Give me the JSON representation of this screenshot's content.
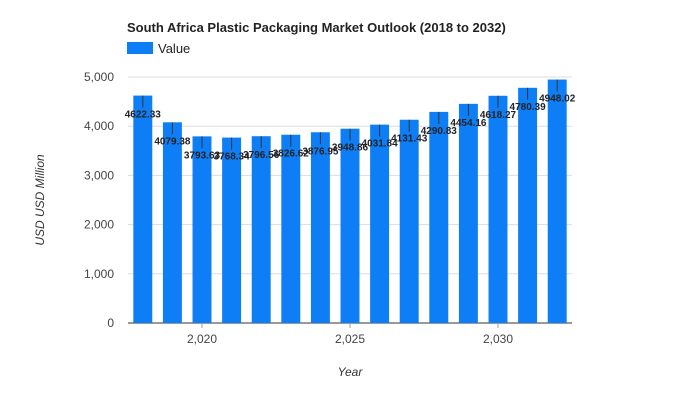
{
  "chart_data": {
    "type": "bar",
    "title": "South Africa Plastic Packaging Market Outlook (2018 to 2032)",
    "xlabel": "Year",
    "ylabel": "USD USD Million",
    "legend": {
      "position": "top-left",
      "entries": [
        "Value"
      ]
    },
    "color": "#0d7ef5",
    "categories": [
      2018,
      2019,
      2020,
      2021,
      2022,
      2023,
      2024,
      2025,
      2026,
      2027,
      2028,
      2029,
      2030,
      2031,
      2032
    ],
    "x_ticks": [
      2020,
      2025,
      2030
    ],
    "x_tick_labels": [
      "2,020",
      "2,025",
      "2,030"
    ],
    "series": [
      {
        "name": "Value",
        "values": [
          4622.33,
          4079.38,
          3793.63,
          3768.34,
          3796.56,
          3826.62,
          3876.95,
          3948.86,
          4031.84,
          4131.43,
          4290.83,
          4454.16,
          4618.27,
          4780.39,
          4948.02
        ],
        "labels": [
          "4622.33",
          "4079.38",
          "3793.63",
          "3768.34",
          "3796.56",
          "3826.62",
          "3876.95",
          "3948.86",
          "4031.84",
          "4131.43",
          "4290.83",
          "4454.16",
          "4618.27",
          "4780.39",
          "4948.02"
        ]
      }
    ],
    "ylim": [
      0,
      5000
    ],
    "y_ticks": [
      0,
      1000,
      2000,
      3000,
      4000,
      5000
    ],
    "y_tick_labels": [
      "0",
      "1,000",
      "2,000",
      "3,000",
      "4,000",
      "5,000"
    ],
    "grid": true
  }
}
